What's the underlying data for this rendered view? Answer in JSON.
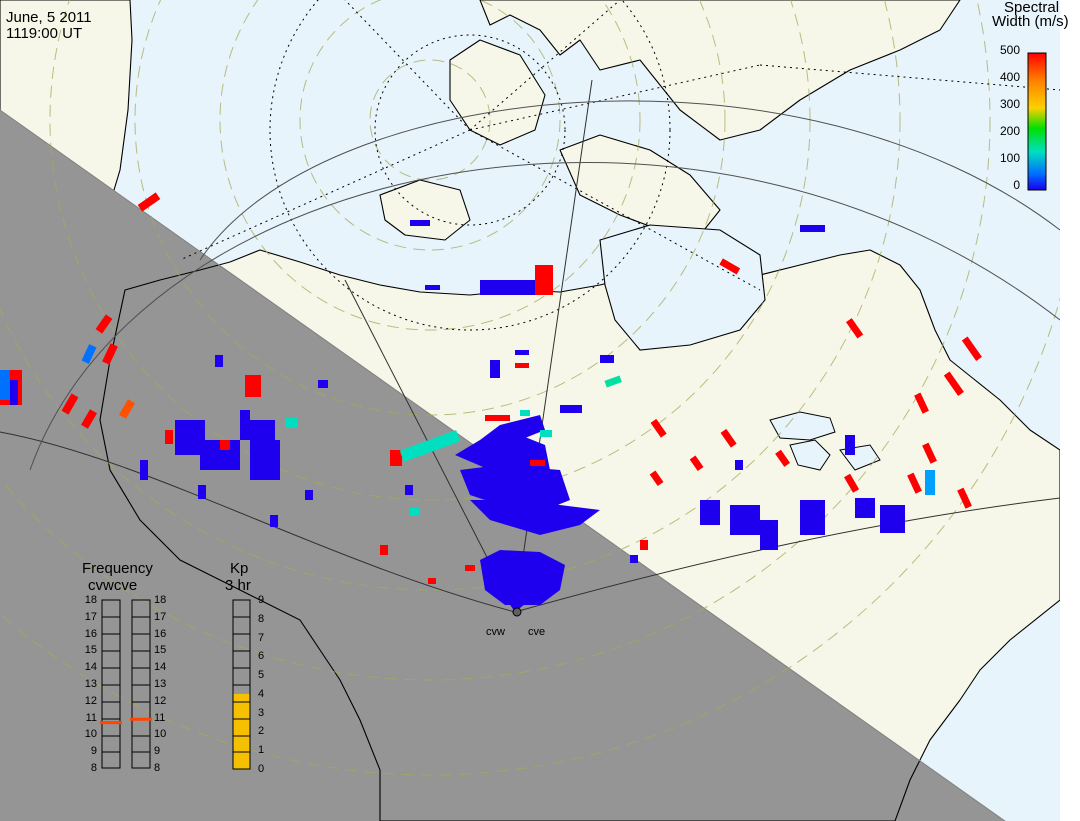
{
  "header": {
    "date": "June, 5 2011",
    "time": "1119:00 UT"
  },
  "colorbar": {
    "title_line1": "Spectral",
    "title_line2": "Width (m/s)",
    "ticks": [
      "500",
      "400",
      "300",
      "200",
      "100",
      "0"
    ],
    "stops": [
      "#ff0000",
      "#ff8000",
      "#ffd000",
      "#00e000",
      "#00e0c0",
      "#0070ff",
      "#1800f0"
    ]
  },
  "stations": {
    "west": "cvw",
    "east": "cve"
  },
  "frequency": {
    "title": "Frequency",
    "subtitle": "cvwcve",
    "ticks": [
      "18",
      "17",
      "16",
      "15",
      "14",
      "13",
      "12",
      "11",
      "10",
      "9",
      "8"
    ],
    "cvw_mhz": 10.7,
    "cve_mhz": 10.9
  },
  "kp": {
    "title": "Kp",
    "subtitle": "3 hr",
    "ticks": [
      "9",
      "8",
      "7",
      "6",
      "5",
      "4",
      "3",
      "2",
      "1",
      "0"
    ],
    "value": 4
  },
  "colors": {
    "night": "#959595",
    "sunlit_land": "#f7f7e9",
    "sunlit_ocean": "#e7f4fb",
    "scatter_low": "#1e00ee",
    "scatter_high": "#ff0000",
    "kp_fill": "#f5c000",
    "freq_marker": "#ff4500"
  }
}
